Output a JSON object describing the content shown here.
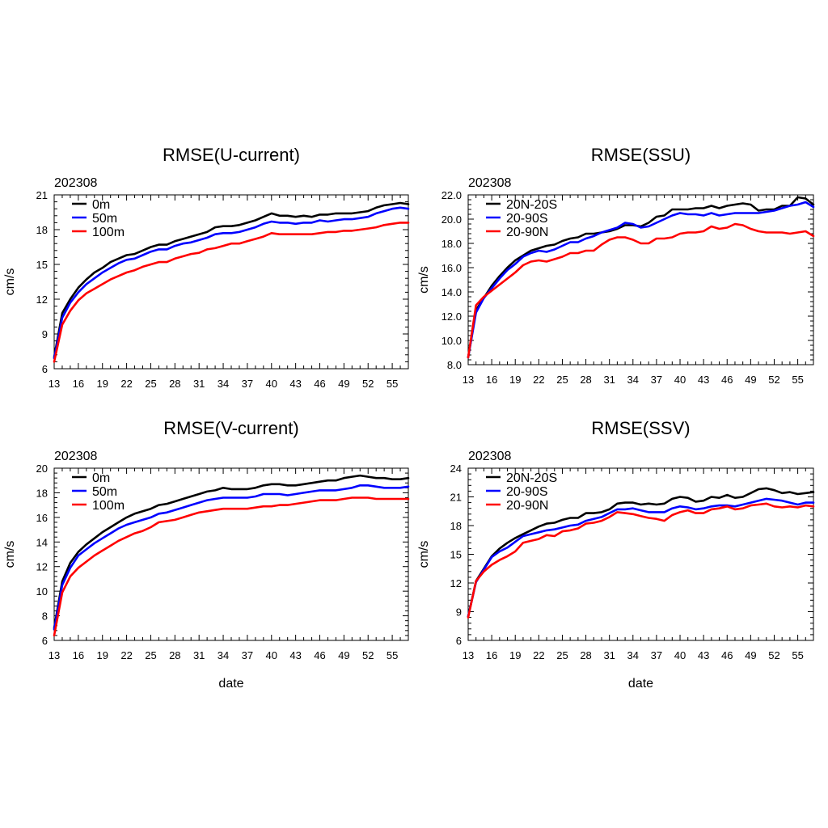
{
  "chart_data": [
    {
      "type": "line",
      "title": "RMSE(U-current)",
      "subtitle": "202308",
      "xlabel": "",
      "ylabel": "cm/s",
      "xlim": [
        13,
        57
      ],
      "ylim": [
        6,
        21
      ],
      "xticks": [
        "13",
        "16",
        "19",
        "22",
        "25",
        "28",
        "31",
        "34",
        "37",
        "40",
        "43",
        "46",
        "49",
        "52",
        "55"
      ],
      "yticks": [
        "6",
        "9",
        "12",
        "15",
        "18",
        "21"
      ],
      "legend_position": "top-left",
      "x": [
        13,
        14,
        15,
        16,
        17,
        18,
        19,
        20,
        21,
        22,
        23,
        24,
        25,
        26,
        27,
        28,
        29,
        30,
        31,
        32,
        33,
        34,
        35,
        36,
        37,
        38,
        39,
        40,
        41,
        42,
        43,
        44,
        45,
        46,
        47,
        48,
        49,
        50,
        51,
        52,
        53,
        54,
        55,
        56,
        57
      ],
      "series": [
        {
          "name": "0m",
          "color": "#000000",
          "values": [
            7.0,
            10.8,
            12.0,
            13.0,
            13.7,
            14.3,
            14.7,
            15.2,
            15.5,
            15.8,
            15.9,
            16.2,
            16.5,
            16.7,
            16.7,
            17.0,
            17.2,
            17.4,
            17.6,
            17.8,
            18.2,
            18.3,
            18.3,
            18.4,
            18.6,
            18.8,
            19.1,
            19.4,
            19.2,
            19.2,
            19.1,
            19.2,
            19.1,
            19.3,
            19.3,
            19.4,
            19.4,
            19.4,
            19.5,
            19.6,
            19.9,
            20.1,
            20.2,
            20.3,
            20.2
          ]
        },
        {
          "name": "50m",
          "color": "#0000ff",
          "values": [
            6.9,
            10.4,
            11.7,
            12.6,
            13.3,
            13.8,
            14.3,
            14.7,
            15.1,
            15.4,
            15.5,
            15.8,
            16.1,
            16.3,
            16.3,
            16.6,
            16.8,
            16.9,
            17.1,
            17.3,
            17.6,
            17.7,
            17.7,
            17.8,
            18.0,
            18.2,
            18.5,
            18.7,
            18.6,
            18.6,
            18.5,
            18.6,
            18.6,
            18.8,
            18.7,
            18.8,
            18.9,
            18.9,
            19.0,
            19.1,
            19.4,
            19.6,
            19.8,
            19.9,
            19.8
          ]
        },
        {
          "name": "100m",
          "color": "#ff0000",
          "values": [
            6.6,
            9.8,
            11.0,
            11.9,
            12.5,
            12.9,
            13.3,
            13.7,
            14.0,
            14.3,
            14.5,
            14.8,
            15.0,
            15.2,
            15.2,
            15.5,
            15.7,
            15.9,
            16.0,
            16.3,
            16.4,
            16.6,
            16.8,
            16.8,
            17.0,
            17.2,
            17.4,
            17.7,
            17.6,
            17.6,
            17.6,
            17.6,
            17.6,
            17.7,
            17.8,
            17.8,
            17.9,
            17.9,
            18.0,
            18.1,
            18.2,
            18.4,
            18.5,
            18.6,
            18.6
          ]
        }
      ]
    },
    {
      "type": "line",
      "title": "RMSE(SSU)",
      "subtitle": "202308",
      "xlabel": "",
      "ylabel": "cm/s",
      "xlim": [
        13,
        57
      ],
      "ylim": [
        8,
        22
      ],
      "xticks": [
        "13",
        "16",
        "19",
        "22",
        "25",
        "28",
        "31",
        "34",
        "37",
        "40",
        "43",
        "46",
        "49",
        "52",
        "55"
      ],
      "yticks": [
        "8.0",
        "10.0",
        "12.0",
        "14.0",
        "16.0",
        "18.0",
        "20.0",
        "22.0"
      ],
      "legend_position": "top-left",
      "x": [
        13,
        14,
        15,
        16,
        17,
        18,
        19,
        20,
        21,
        22,
        23,
        24,
        25,
        26,
        27,
        28,
        29,
        30,
        31,
        32,
        33,
        34,
        35,
        36,
        37,
        38,
        39,
        40,
        41,
        42,
        43,
        44,
        45,
        46,
        47,
        48,
        49,
        50,
        51,
        52,
        53,
        54,
        55,
        56,
        57
      ],
      "series": [
        {
          "name": "20N-20S",
          "color": "#000000",
          "values": [
            8.6,
            12.5,
            13.5,
            14.5,
            15.3,
            16.0,
            16.6,
            17.0,
            17.4,
            17.6,
            17.8,
            17.9,
            18.2,
            18.4,
            18.5,
            18.8,
            18.8,
            18.9,
            19.0,
            19.2,
            19.5,
            19.5,
            19.4,
            19.7,
            20.2,
            20.3,
            20.8,
            20.8,
            20.8,
            20.9,
            20.9,
            21.1,
            20.9,
            21.1,
            21.2,
            21.3,
            21.2,
            20.7,
            20.8,
            20.8,
            21.1,
            21.1,
            21.8,
            21.7,
            21.2
          ]
        },
        {
          "name": "20-90S",
          "color": "#0000ff",
          "values": [
            8.6,
            12.3,
            13.5,
            14.3,
            15.1,
            15.8,
            16.3,
            16.9,
            17.2,
            17.4,
            17.3,
            17.5,
            17.8,
            18.1,
            18.1,
            18.4,
            18.6,
            18.9,
            19.1,
            19.3,
            19.7,
            19.6,
            19.3,
            19.4,
            19.7,
            20.0,
            20.3,
            20.5,
            20.4,
            20.4,
            20.3,
            20.5,
            20.3,
            20.4,
            20.5,
            20.5,
            20.5,
            20.5,
            20.6,
            20.7,
            20.9,
            21.1,
            21.2,
            21.4,
            21.0
          ]
        },
        {
          "name": "20-90N",
          "color": "#ff0000",
          "values": [
            8.6,
            12.9,
            13.6,
            14.1,
            14.6,
            15.1,
            15.6,
            16.2,
            16.5,
            16.6,
            16.5,
            16.7,
            16.9,
            17.2,
            17.2,
            17.4,
            17.4,
            17.9,
            18.3,
            18.5,
            18.5,
            18.3,
            18.0,
            18.0,
            18.4,
            18.4,
            18.5,
            18.8,
            18.9,
            18.9,
            19.0,
            19.4,
            19.2,
            19.3,
            19.6,
            19.5,
            19.2,
            19.0,
            18.9,
            18.9,
            18.9,
            18.8,
            18.9,
            19.0,
            18.6
          ]
        }
      ]
    },
    {
      "type": "line",
      "title": "RMSE(V-current)",
      "subtitle": "202308",
      "xlabel": "date",
      "ylabel": "cm/s",
      "xlim": [
        13,
        57
      ],
      "ylim": [
        6,
        20
      ],
      "xticks": [
        "13",
        "16",
        "19",
        "22",
        "25",
        "28",
        "31",
        "34",
        "37",
        "40",
        "43",
        "46",
        "49",
        "52",
        "55"
      ],
      "yticks": [
        "6",
        "8",
        "10",
        "12",
        "14",
        "16",
        "18",
        "20"
      ],
      "legend_position": "top-left",
      "x": [
        13,
        14,
        15,
        16,
        17,
        18,
        19,
        20,
        21,
        22,
        23,
        24,
        25,
        26,
        27,
        28,
        29,
        30,
        31,
        32,
        33,
        34,
        35,
        36,
        37,
        38,
        39,
        40,
        41,
        42,
        43,
        44,
        45,
        46,
        47,
        48,
        49,
        50,
        51,
        52,
        53,
        54,
        55,
        56,
        57
      ],
      "series": [
        {
          "name": "0m",
          "color": "#000000",
          "values": [
            7.0,
            10.8,
            12.3,
            13.2,
            13.8,
            14.3,
            14.8,
            15.2,
            15.6,
            16.0,
            16.3,
            16.5,
            16.7,
            17.0,
            17.1,
            17.3,
            17.5,
            17.7,
            17.9,
            18.1,
            18.2,
            18.4,
            18.3,
            18.3,
            18.3,
            18.4,
            18.6,
            18.7,
            18.7,
            18.6,
            18.6,
            18.7,
            18.8,
            18.9,
            19.0,
            19.0,
            19.2,
            19.3,
            19.4,
            19.3,
            19.2,
            19.2,
            19.1,
            19.1,
            19.2
          ]
        },
        {
          "name": "50m",
          "color": "#0000ff",
          "values": [
            6.9,
            10.5,
            11.9,
            12.9,
            13.4,
            13.9,
            14.3,
            14.7,
            15.1,
            15.4,
            15.6,
            15.8,
            16.0,
            16.3,
            16.4,
            16.6,
            16.8,
            17.0,
            17.2,
            17.4,
            17.5,
            17.6,
            17.6,
            17.6,
            17.6,
            17.7,
            17.9,
            17.9,
            17.9,
            17.8,
            17.9,
            18.0,
            18.1,
            18.2,
            18.2,
            18.2,
            18.3,
            18.4,
            18.6,
            18.6,
            18.5,
            18.4,
            18.4,
            18.4,
            18.5
          ]
        },
        {
          "name": "100m",
          "color": "#ff0000",
          "values": [
            6.4,
            9.9,
            11.2,
            11.9,
            12.4,
            12.9,
            13.3,
            13.7,
            14.1,
            14.4,
            14.7,
            14.9,
            15.2,
            15.6,
            15.7,
            15.8,
            16.0,
            16.2,
            16.4,
            16.5,
            16.6,
            16.7,
            16.7,
            16.7,
            16.7,
            16.8,
            16.9,
            16.9,
            17.0,
            17.0,
            17.1,
            17.2,
            17.3,
            17.4,
            17.4,
            17.4,
            17.5,
            17.6,
            17.6,
            17.6,
            17.5,
            17.5,
            17.5,
            17.5,
            17.5
          ]
        }
      ]
    },
    {
      "type": "line",
      "title": "RMSE(SSV)",
      "subtitle": "202308",
      "xlabel": "date",
      "ylabel": "cm/s",
      "xlim": [
        13,
        57
      ],
      "ylim": [
        6,
        24
      ],
      "xticks": [
        "13",
        "16",
        "19",
        "22",
        "25",
        "28",
        "31",
        "34",
        "37",
        "40",
        "43",
        "46",
        "49",
        "52",
        "55"
      ],
      "yticks": [
        "6",
        "9",
        "12",
        "15",
        "18",
        "21",
        "24"
      ],
      "legend_position": "top-left",
      "x": [
        13,
        14,
        15,
        16,
        17,
        18,
        19,
        20,
        21,
        22,
        23,
        24,
        25,
        26,
        27,
        28,
        29,
        30,
        31,
        32,
        33,
        34,
        35,
        36,
        37,
        38,
        39,
        40,
        41,
        42,
        43,
        44,
        45,
        46,
        47,
        48,
        49,
        50,
        51,
        52,
        53,
        54,
        55,
        56,
        57
      ],
      "series": [
        {
          "name": "20N-20S",
          "color": "#000000",
          "values": [
            8.5,
            12.2,
            13.5,
            14.8,
            15.6,
            16.2,
            16.7,
            17.1,
            17.5,
            17.9,
            18.2,
            18.3,
            18.6,
            18.8,
            18.8,
            19.3,
            19.3,
            19.4,
            19.7,
            20.3,
            20.4,
            20.4,
            20.2,
            20.3,
            20.2,
            20.3,
            20.8,
            21.0,
            20.9,
            20.5,
            20.6,
            21.0,
            20.9,
            21.2,
            20.9,
            21.0,
            21.4,
            21.8,
            21.9,
            21.7,
            21.4,
            21.5,
            21.3,
            21.4,
            21.5
          ]
        },
        {
          "name": "20-90S",
          "color": "#0000ff",
          "values": [
            8.5,
            12.1,
            13.4,
            14.7,
            15.3,
            15.7,
            16.3,
            16.9,
            17.1,
            17.3,
            17.5,
            17.6,
            17.8,
            18.0,
            18.1,
            18.5,
            18.7,
            18.9,
            19.3,
            19.7,
            19.7,
            19.8,
            19.6,
            19.4,
            19.4,
            19.4,
            19.8,
            20.0,
            19.9,
            19.7,
            19.8,
            20.0,
            20.1,
            20.1,
            20.0,
            20.2,
            20.4,
            20.6,
            20.8,
            20.7,
            20.6,
            20.4,
            20.2,
            20.4,
            20.4
          ]
        },
        {
          "name": "20-90N",
          "color": "#ff0000",
          "values": [
            8.4,
            12.2,
            13.2,
            13.9,
            14.4,
            14.8,
            15.3,
            16.2,
            16.4,
            16.6,
            17.0,
            16.9,
            17.4,
            17.5,
            17.7,
            18.2,
            18.3,
            18.5,
            18.9,
            19.4,
            19.3,
            19.2,
            19.0,
            18.8,
            18.7,
            18.5,
            19.1,
            19.4,
            19.6,
            19.3,
            19.3,
            19.7,
            19.8,
            20.0,
            19.7,
            19.8,
            20.1,
            20.2,
            20.3,
            20.0,
            19.9,
            20.0,
            19.9,
            20.1,
            20.0
          ]
        }
      ]
    }
  ]
}
